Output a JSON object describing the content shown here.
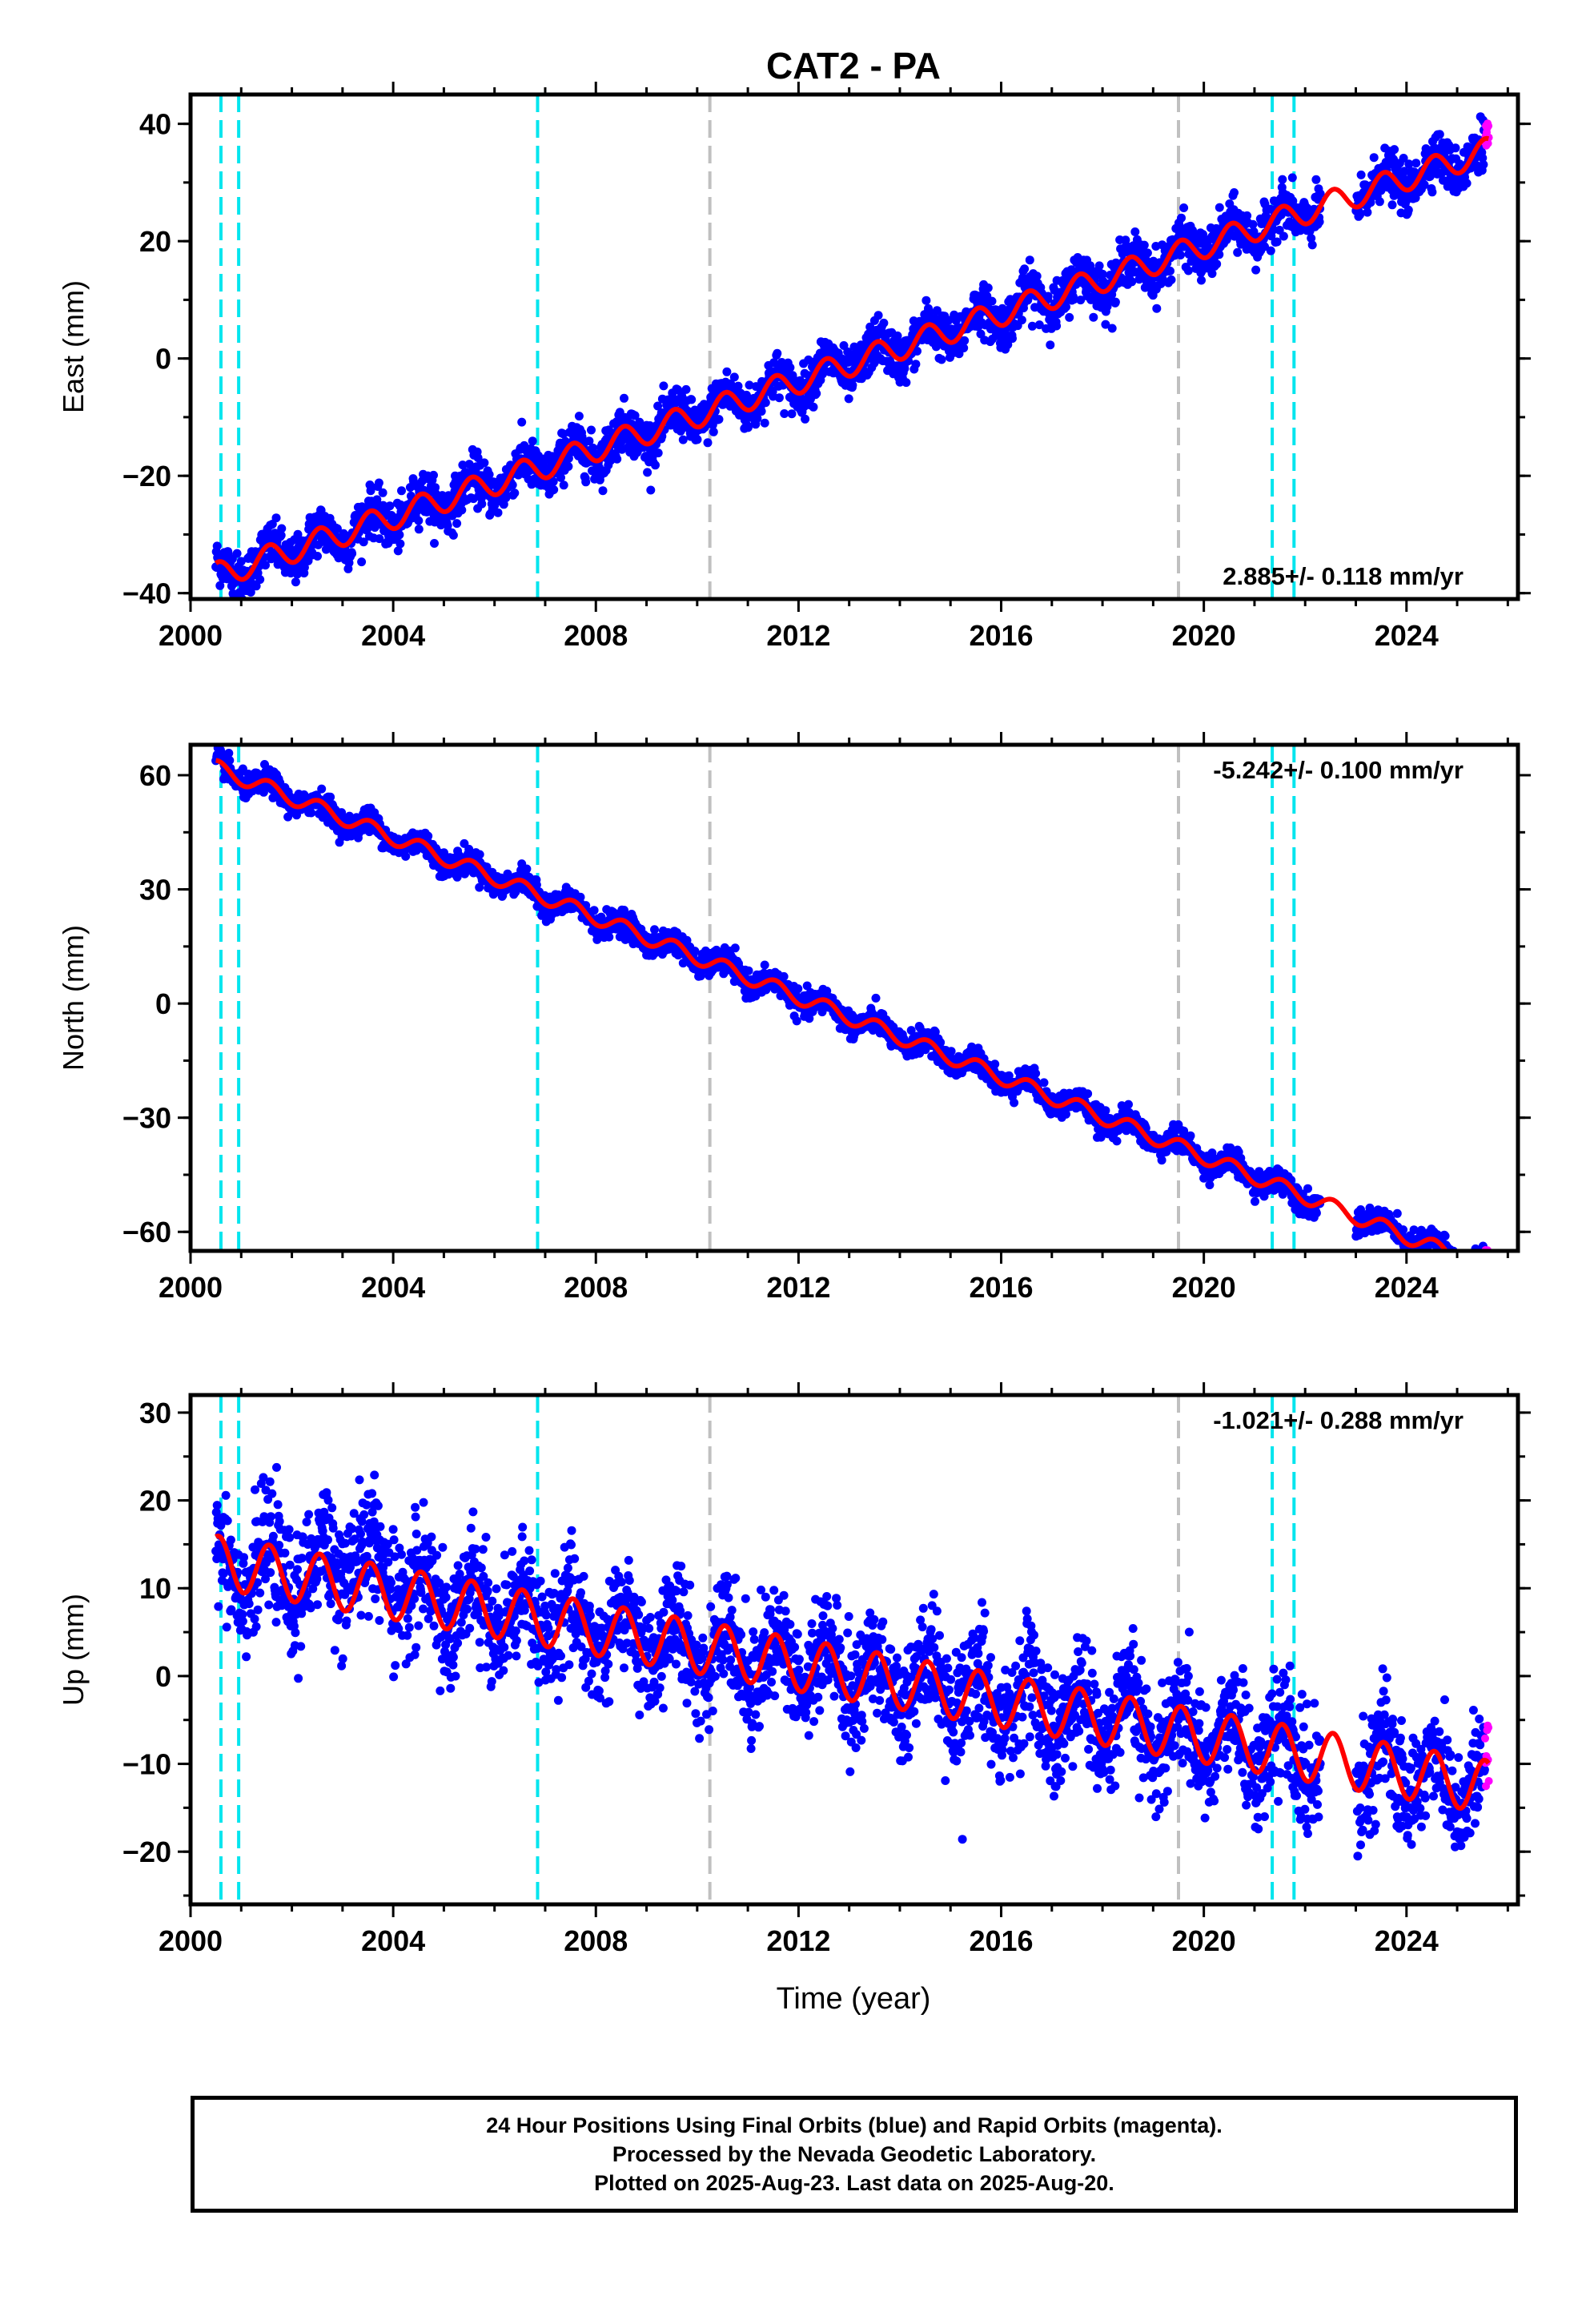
{
  "chart_data": {
    "type": "scatter",
    "title": "CAT2 - PA",
    "xlabel": "Time (year)",
    "x_ticks": [
      "2000",
      "2004",
      "2008",
      "2012",
      "2016",
      "2020",
      "2024"
    ],
    "xlim": [
      2000.0,
      2026.2
    ],
    "final_orbits_color": "#0000ff",
    "rapid_orbits_color": "#ff00ff",
    "model_color": "#ff0000",
    "equipment_change_color": "#00e5ee",
    "other_event_color": "#c0c0c0",
    "equipment_change_epochs": [
      2000.6,
      2000.95,
      2006.85,
      2021.35,
      2021.78
    ],
    "other_event_epochs": [
      2010.25,
      2019.5
    ],
    "data_span": [
      2000.5,
      2025.63
    ],
    "rapid_start": 2025.55,
    "gap": [
      2022.3,
      2023.0
    ],
    "panels": [
      {
        "id": "east",
        "ylabel": "East (mm)",
        "ylim": [
          -41,
          45
        ],
        "y_ticks": [
          "40",
          "20",
          "0",
          "−20",
          "−40"
        ],
        "rate_label": "2.885+/- 0.118 mm/yr",
        "rate_position": "bottom-right",
        "rate_mm_per_yr": 2.885,
        "offset_at_2000_5": -37.0,
        "annual_amplitude_mm": 2.2,
        "scatter_mm": 2.0
      },
      {
        "id": "north",
        "ylabel": "North (mm)",
        "ylim": [
          -65,
          68
        ],
        "y_ticks": [
          "60",
          "30",
          "0",
          "−30",
          "−60"
        ],
        "rate_label": "-5.242+/- 0.100 mm/yr",
        "rate_position": "top-right",
        "rate_mm_per_yr": -5.242,
        "offset_at_2000_5": 62.0,
        "annual_amplitude_mm": 2.0,
        "scatter_mm": 1.6
      },
      {
        "id": "up",
        "ylabel": "Up (mm)",
        "ylim": [
          -26,
          32
        ],
        "y_ticks": [
          "30",
          "20",
          "10",
          "0",
          "−10",
          "−20"
        ],
        "rate_label": "-1.021+/- 0.288 mm/yr",
        "rate_position": "top-right",
        "rate_mm_per_yr": -1.021,
        "offset_at_2000_5": 13.0,
        "annual_amplitude_mm": 3.0,
        "scatter_mm": 3.2
      }
    ]
  },
  "footer": {
    "line1": "24 Hour Positions Using Final Orbits (blue) and Rapid Orbits (magenta).",
    "line2": "Processed by the Nevada Geodetic Laboratory.",
    "line3": "Plotted on 2025-Aug-23. Last data on 2025-Aug-20."
  }
}
